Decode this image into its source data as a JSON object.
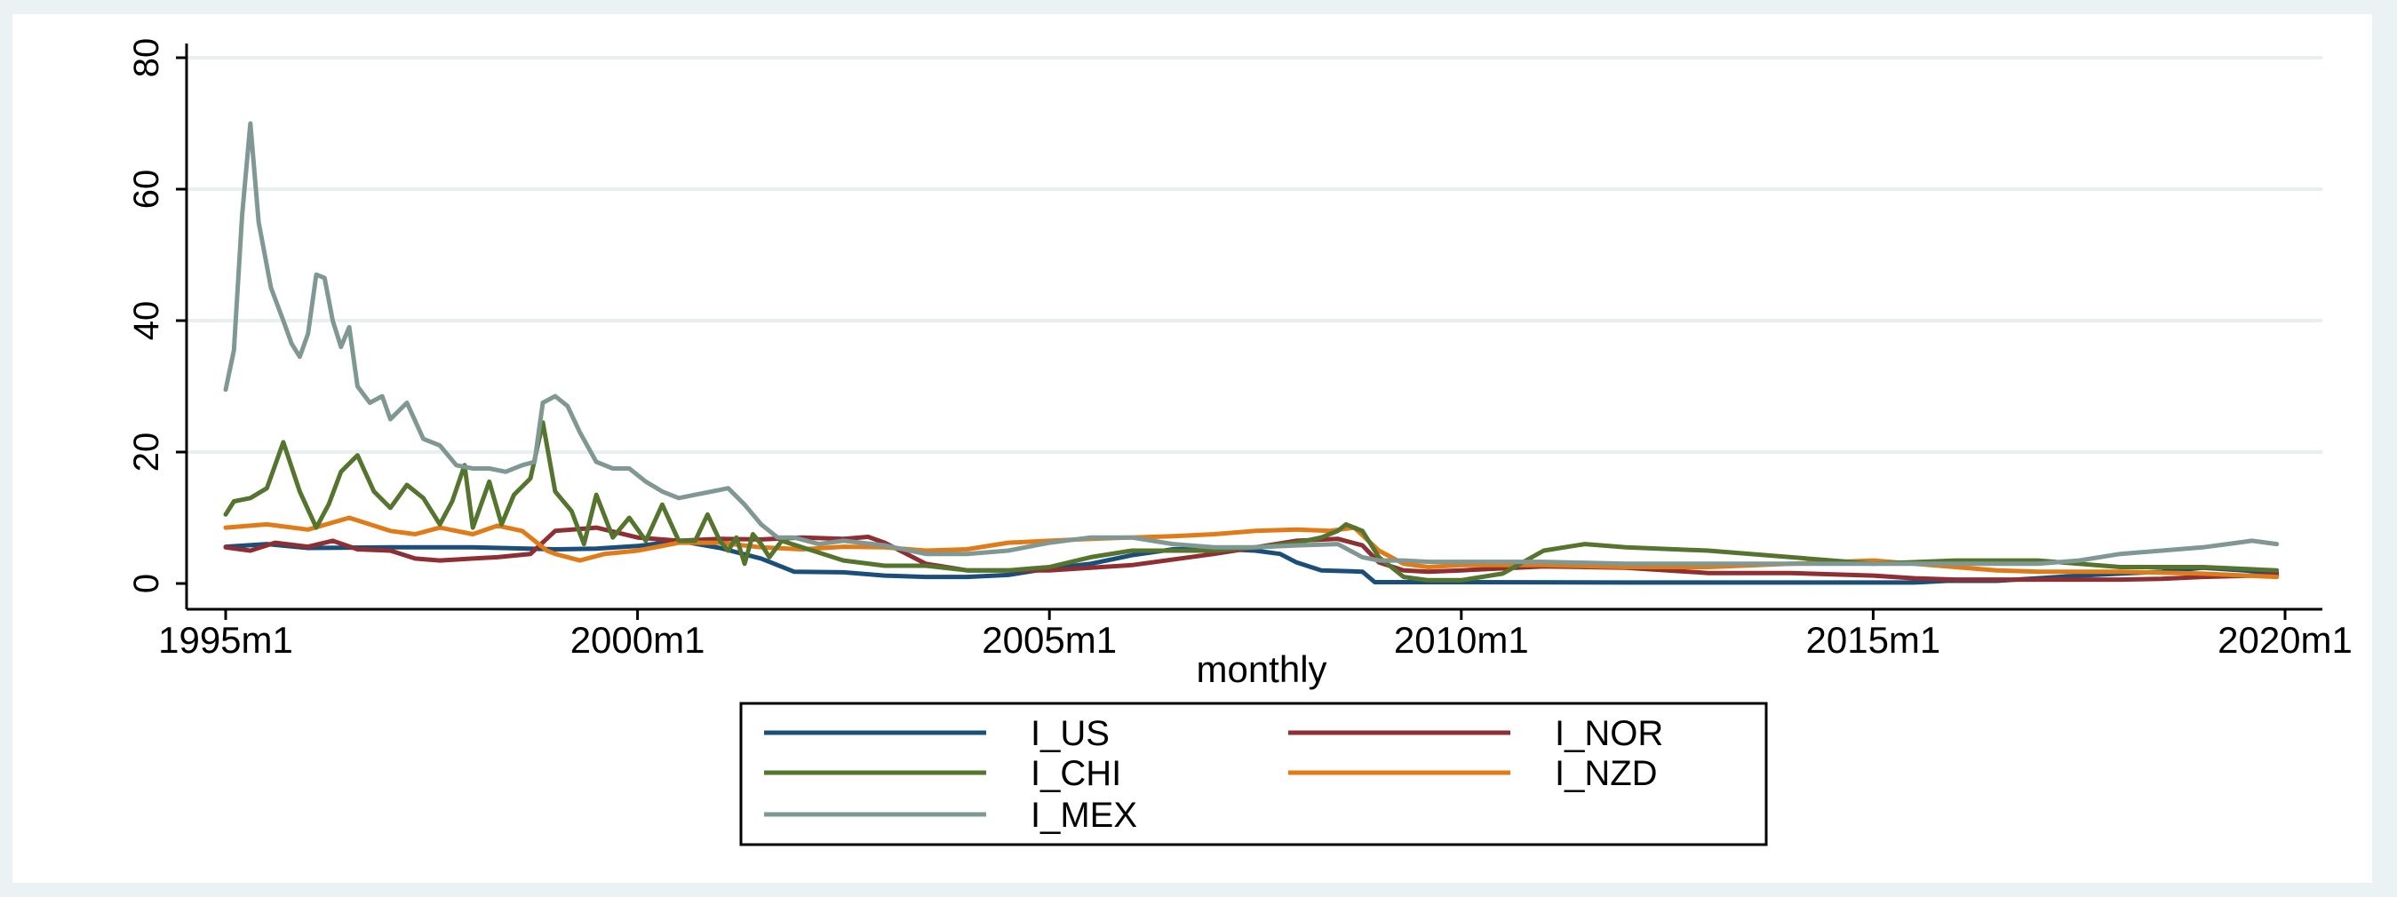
{
  "chart_data": {
    "type": "line",
    "title": "",
    "xlabel": "monthly",
    "ylabel": "",
    "x_range": [
      "1995m1",
      "2020m1"
    ],
    "ylim": [
      0,
      80
    ],
    "y_ticks": [
      0,
      20,
      40,
      60,
      80
    ],
    "y_tick_labels": [
      "0",
      "20",
      "40",
      "60",
      "80"
    ],
    "x_ticks": [
      1995,
      2000,
      2005,
      2010,
      2015,
      2020
    ],
    "x_tick_labels": [
      "1995m1",
      "2000m1",
      "2005m1",
      "2010m1",
      "2015m1",
      "2020m1"
    ],
    "grid": true,
    "legend_position": "bottom",
    "series": [
      {
        "name": "I_US",
        "color": "#1b4f7a",
        "x": [
          1995.0,
          1995.5,
          1996.0,
          1997.0,
          1998.0,
          1999.0,
          1999.5,
          2000.0,
          2000.5,
          2001.0,
          2001.5,
          2001.9,
          2002.5,
          2003.0,
          2003.5,
          2004.0,
          2004.5,
          2005.0,
          2005.5,
          2006.0,
          2006.5,
          2007.0,
          2007.5,
          2007.8,
          2008.0,
          2008.3,
          2008.8,
          2008.95,
          2009.5,
          2010.0,
          2012.0,
          2014.0,
          2015.5,
          2015.9,
          2016.5,
          2017.0,
          2017.5,
          2018.0,
          2018.5,
          2019.0,
          2019.5,
          2019.9
        ],
        "y": [
          5.6,
          6.0,
          5.4,
          5.5,
          5.5,
          5.2,
          5.3,
          5.7,
          6.5,
          5.4,
          3.8,
          1.8,
          1.7,
          1.2,
          1.0,
          1.0,
          1.3,
          2.3,
          3.0,
          4.3,
          5.2,
          5.3,
          5.0,
          4.5,
          3.2,
          2.0,
          1.8,
          0.2,
          0.2,
          0.2,
          0.15,
          0.15,
          0.15,
          0.4,
          0.4,
          0.8,
          1.2,
          1.5,
          1.8,
          2.4,
          2.0,
          1.6
        ]
      },
      {
        "name": "I_NOR",
        "color": "#8f2f33",
        "x": [
          1995.0,
          1995.3,
          1995.6,
          1996.0,
          1996.3,
          1996.6,
          1997.0,
          1997.3,
          1997.6,
          1998.0,
          1998.3,
          1998.7,
          1999.0,
          1999.5,
          2000.0,
          2000.5,
          2001.0,
          2001.5,
          2002.0,
          2002.5,
          2002.8,
          2003.0,
          2003.5,
          2004.0,
          2005.0,
          2006.0,
          2007.0,
          2007.5,
          2008.0,
          2008.5,
          2008.8,
          2009.0,
          2009.3,
          2009.6,
          2010.0,
          2011.0,
          2012.0,
          2013.0,
          2014.0,
          2015.0,
          2015.5,
          2016.0,
          2017.0,
          2018.0,
          2018.5,
          2019.0,
          2019.9
        ],
        "y": [
          5.5,
          5.0,
          6.2,
          5.6,
          6.5,
          5.2,
          5.0,
          3.8,
          3.5,
          3.8,
          4.0,
          4.5,
          8.0,
          8.5,
          7.0,
          6.5,
          6.8,
          6.7,
          7.0,
          6.8,
          7.1,
          6.2,
          3.0,
          2.0,
          2.0,
          2.8,
          4.5,
          5.5,
          6.5,
          6.8,
          5.8,
          3.2,
          2.0,
          1.8,
          2.0,
          2.6,
          2.4,
          1.6,
          1.6,
          1.2,
          0.8,
          0.6,
          0.6,
          0.6,
          0.7,
          1.0,
          1.3
        ]
      },
      {
        "name": "I_CHI",
        "color": "#55752f",
        "x": [
          1995.0,
          1995.1,
          1995.3,
          1995.5,
          1995.7,
          1995.9,
          1996.1,
          1996.25,
          1996.4,
          1996.6,
          1996.8,
          1997.0,
          1997.2,
          1997.4,
          1997.6,
          1997.75,
          1997.9,
          1998.0,
          1998.2,
          1998.35,
          1998.5,
          1998.7,
          1998.85,
          1999.0,
          1999.2,
          1999.35,
          1999.5,
          1999.7,
          1999.9,
          2000.1,
          2000.3,
          2000.5,
          2000.7,
          2000.85,
          2001.0,
          2001.1,
          2001.2,
          2001.3,
          2001.4,
          2001.5,
          2001.6,
          2001.75,
          2002.0,
          2002.5,
          2003.0,
          2003.5,
          2004.0,
          2004.5,
          2005.0,
          2005.5,
          2006.0,
          2006.5,
          2007.0,
          2007.5,
          2008.0,
          2008.3,
          2008.5,
          2008.6,
          2008.8,
          2009.0,
          2009.3,
          2009.6,
          2010.0,
          2010.5,
          2011.0,
          2011.5,
          2012.0,
          2013.0,
          2014.0,
          2015.0,
          2016.0,
          2017.0,
          2018.0,
          2019.0,
          2019.9
        ],
        "y": [
          10.5,
          12.5,
          13.0,
          14.5,
          21.5,
          14.0,
          8.5,
          12.0,
          17.0,
          19.5,
          14.0,
          11.5,
          15.0,
          13.0,
          9.0,
          12.5,
          18.0,
          8.5,
          15.5,
          9.0,
          13.5,
          16.0,
          24.5,
          14.0,
          11.0,
          6.0,
          13.5,
          7.0,
          10.0,
          6.5,
          12.0,
          6.5,
          6.5,
          10.5,
          6.5,
          5.0,
          7.0,
          3.0,
          7.5,
          6.0,
          4.0,
          6.5,
          5.5,
          3.5,
          2.7,
          2.7,
          2.0,
          2.0,
          2.5,
          4.0,
          5.0,
          5.0,
          5.0,
          5.5,
          6.2,
          7.0,
          8.0,
          9.0,
          8.0,
          4.0,
          1.0,
          0.5,
          0.5,
          1.5,
          5.0,
          6.0,
          5.5,
          5.0,
          4.0,
          3.0,
          3.5,
          3.5,
          2.5,
          2.5,
          2.0
        ]
      },
      {
        "name": "I_NZD",
        "color": "#e07b18",
        "x": [
          1995.0,
          1995.5,
          1996.0,
          1996.5,
          1997.0,
          1997.3,
          1997.6,
          1998.0,
          1998.3,
          1998.6,
          1998.9,
          1999.0,
          1999.3,
          1999.6,
          2000.0,
          2000.5,
          2001.0,
          2001.5,
          2002.0,
          2002.5,
          2003.0,
          2003.5,
          2004.0,
          2004.5,
          2005.0,
          2005.5,
          2006.0,
          2006.5,
          2007.0,
          2007.5,
          2008.0,
          2008.4,
          2008.7,
          2009.0,
          2009.3,
          2009.6,
          2010.0,
          2011.0,
          2012.0,
          2013.0,
          2014.0,
          2015.0,
          2016.0,
          2016.5,
          2017.0,
          2018.0,
          2019.0,
          2019.9
        ],
        "y": [
          8.5,
          9.0,
          8.2,
          10.0,
          8.0,
          7.5,
          8.5,
          7.5,
          8.8,
          8.0,
          5.0,
          4.5,
          3.5,
          4.5,
          5.0,
          6.2,
          6.2,
          5.5,
          5.2,
          5.6,
          5.5,
          5.0,
          5.2,
          6.2,
          6.5,
          6.8,
          7.0,
          7.2,
          7.5,
          8.0,
          8.2,
          8.0,
          8.5,
          5.0,
          3.0,
          2.5,
          2.8,
          2.8,
          2.5,
          2.5,
          3.0,
          3.5,
          2.5,
          2.0,
          1.8,
          1.8,
          1.5,
          1.0
        ]
      },
      {
        "name": "I_MEX",
        "color": "#7f9893",
        "x": [
          1995.0,
          1995.1,
          1995.2,
          1995.3,
          1995.4,
          1995.55,
          1995.7,
          1995.8,
          1995.9,
          1996.0,
          1996.1,
          1996.2,
          1996.3,
          1996.4,
          1996.5,
          1996.6,
          1996.75,
          1996.9,
          1997.0,
          1997.2,
          1997.4,
          1997.6,
          1997.8,
          1998.0,
          1998.2,
          1998.4,
          1998.6,
          1998.75,
          1998.85,
          1999.0,
          1999.15,
          1999.3,
          1999.5,
          1999.7,
          1999.9,
          2000.1,
          2000.3,
          2000.5,
          2000.7,
          2000.9,
          2001.1,
          2001.3,
          2001.5,
          2001.7,
          2001.9,
          2002.2,
          2002.5,
          2003.0,
          2003.5,
          2004.0,
          2004.5,
          2005.0,
          2005.5,
          2006.0,
          2006.5,
          2007.0,
          2007.5,
          2008.0,
          2008.5,
          2008.8,
          2009.0,
          2009.3,
          2009.6,
          2010.0,
          2011.0,
          2012.0,
          2013.0,
          2014.0,
          2015.0,
          2016.0,
          2016.5,
          2017.0,
          2017.5,
          2018.0,
          2018.5,
          2019.0,
          2019.3,
          2019.6,
          2019.9
        ],
        "y": [
          29.5,
          35.5,
          56.0,
          70.0,
          55.0,
          45.0,
          40.0,
          36.5,
          34.5,
          38.0,
          47.0,
          46.5,
          40.0,
          36.0,
          39.0,
          30.0,
          27.5,
          28.5,
          25.0,
          27.5,
          22.0,
          21.0,
          18.0,
          17.5,
          17.5,
          17.0,
          18.0,
          18.5,
          27.5,
          28.5,
          27.0,
          23.0,
          18.5,
          17.5,
          17.5,
          15.5,
          14.0,
          13.0,
          13.5,
          14.0,
          14.5,
          12.0,
          9.0,
          7.0,
          7.0,
          6.0,
          6.5,
          5.8,
          4.5,
          4.5,
          5.0,
          6.2,
          7.0,
          7.0,
          6.0,
          5.5,
          5.5,
          5.8,
          6.0,
          4.0,
          3.5,
          3.5,
          3.3,
          3.3,
          3.3,
          3.0,
          3.0,
          3.0,
          3.0,
          3.0,
          3.0,
          3.0,
          3.5,
          4.5,
          5.0,
          5.5,
          6.0,
          6.5,
          6.0
        ]
      }
    ],
    "legend_order": [
      "I_US",
      "I_NOR",
      "I_CHI",
      "I_NZD",
      "I_MEX"
    ]
  }
}
